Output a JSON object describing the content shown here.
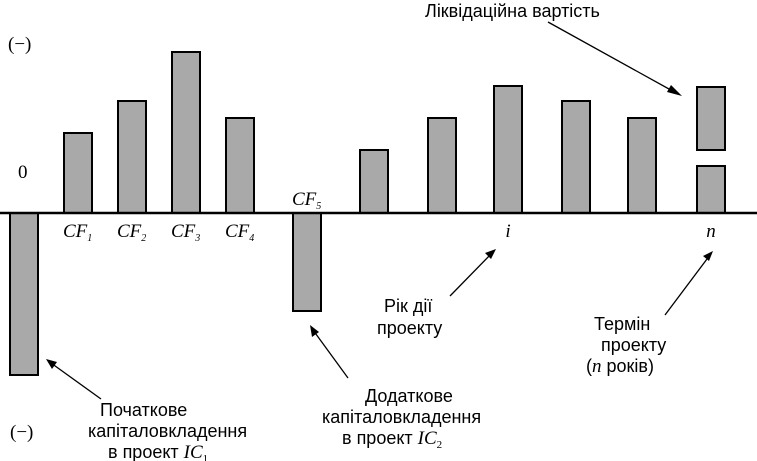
{
  "axis": {
    "top_sign": "(−)",
    "bottom_sign": "(−)",
    "zero": "0"
  },
  "chart_data": {
    "type": "bar",
    "bars": [
      {
        "label": "",
        "value": -162
      },
      {
        "label_main": "CF",
        "label_sub": "1",
        "value": 80
      },
      {
        "label_main": "CF",
        "label_sub": "2",
        "value": 112
      },
      {
        "label_main": "CF",
        "label_sub": "3",
        "value": 161
      },
      {
        "label_main": "CF",
        "label_sub": "4",
        "value": 95
      },
      {
        "label_main": "CF",
        "label_sub": "5",
        "value": -98
      },
      {
        "label": "",
        "value": 63
      },
      {
        "label": "",
        "value": 95
      },
      {
        "label_main": "i",
        "label_sub": "",
        "value": 127
      },
      {
        "label": "",
        "value": 112
      },
      {
        "label": "",
        "value": 95
      },
      {
        "label_main": "n",
        "label_sub": "",
        "value": 47,
        "salvage": 63
      }
    ]
  },
  "annotations": {
    "salvage": "Ліквідаційна вартість",
    "year": [
      "Рік дії",
      "проекту"
    ],
    "term": [
      "Термін",
      "проекту",
      "(n років)"
    ],
    "term_n": "n",
    "initial": [
      "Початкове",
      "капіталовкладення",
      "в проект "
    ],
    "initial_ic": "IC",
    "initial_sub": "1",
    "additional": [
      "Додаткове",
      "капіталовкладення",
      "в проект "
    ],
    "additional_ic": "IC",
    "additional_sub": "2"
  }
}
